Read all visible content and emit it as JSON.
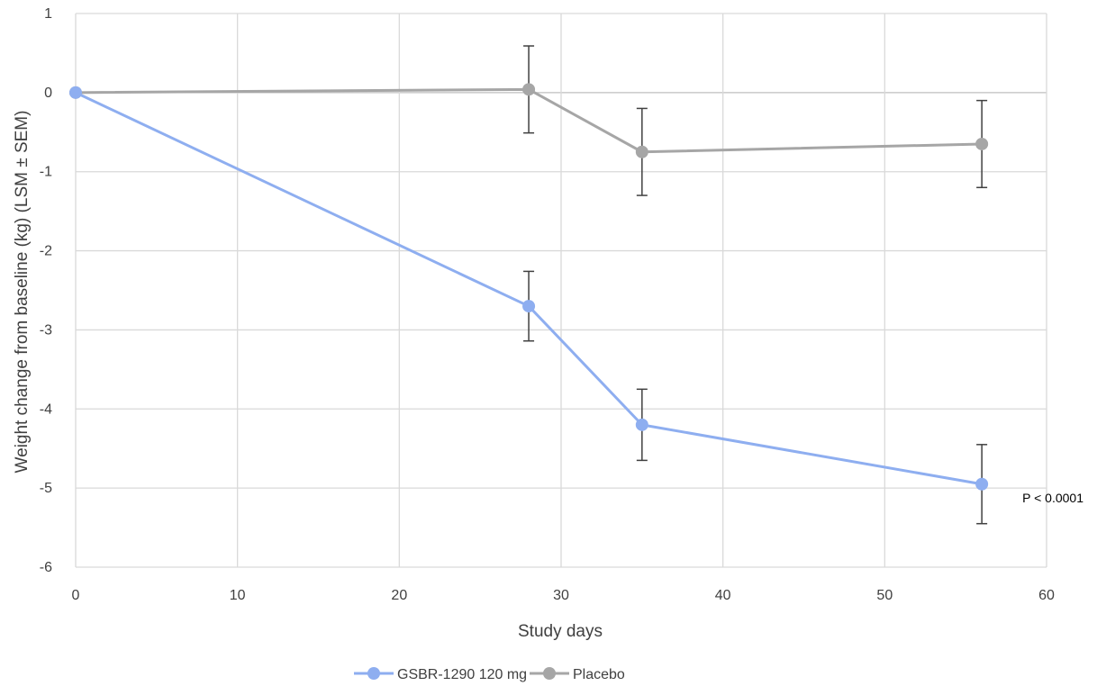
{
  "chart_data": {
    "type": "line",
    "title": "",
    "xlabel": "Study days",
    "ylabel": "Weight change from baseline (kg) (LSM ± SEM)",
    "xlim": [
      0,
      60
    ],
    "ylim": [
      -6,
      1
    ],
    "xticks": [
      0,
      10,
      20,
      30,
      40,
      50,
      60
    ],
    "yticks": [
      1,
      0,
      -1,
      -2,
      -3,
      -4,
      -5,
      -6
    ],
    "grid": true,
    "legend_position": "bottom",
    "series": [
      {
        "name": "GSBR-1290 120 mg",
        "color": "#8eaef0",
        "x": [
          0,
          28,
          35,
          56
        ],
        "y": [
          0,
          -2.7,
          -4.2,
          -4.95
        ],
        "err": [
          0,
          0.44,
          0.45,
          0.5
        ]
      },
      {
        "name": "Placebo",
        "color": "#a6a6a6",
        "x": [
          0,
          28,
          35,
          56
        ],
        "y": [
          0,
          0.04,
          -0.75,
          -0.65
        ],
        "err": [
          0,
          0.55,
          0.55,
          0.55
        ]
      }
    ],
    "error_bar_color": "#404040",
    "annotations": [
      {
        "text": "P < 0.0001",
        "x": 56,
        "y": -4.95
      }
    ]
  }
}
